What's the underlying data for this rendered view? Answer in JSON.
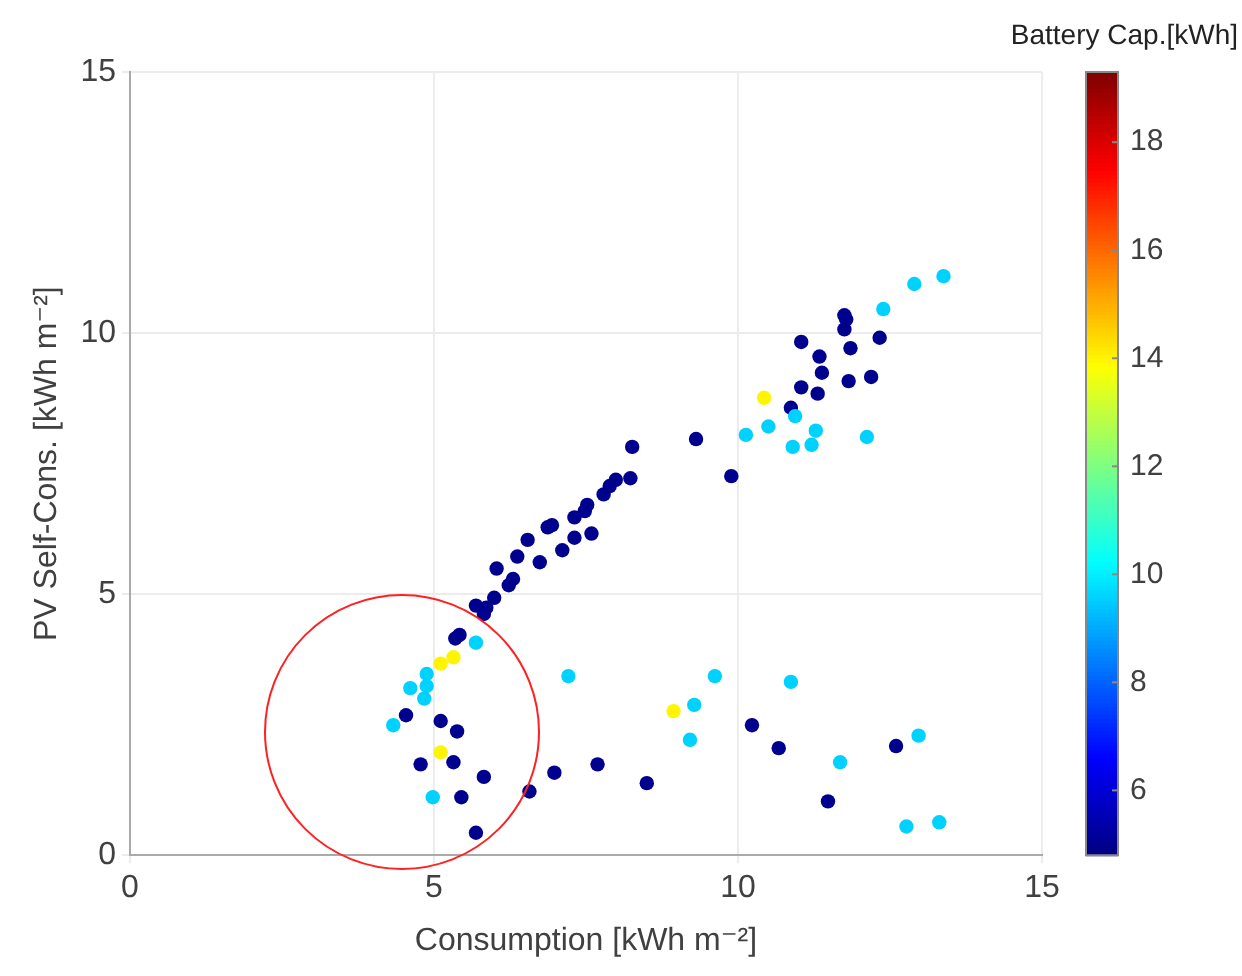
{
  "chart_data": {
    "type": "scatter",
    "xlabel": "Consumption [kWh m⁻²]",
    "ylabel": "PV Self-Cons. [kWh m⁻²]",
    "clabel": "Battery Cap.[kWh]",
    "xlim": [
      0,
      15
    ],
    "xticks": [
      0,
      5,
      10,
      15
    ],
    "ylim": [
      0,
      15
    ],
    "yticks": [
      0,
      5,
      10,
      15
    ],
    "clim": [
      4.8,
      19.3
    ],
    "cticks": [
      6,
      8,
      10,
      12,
      14,
      16,
      18
    ],
    "grid": true,
    "marker": "circle",
    "legend": false,
    "x": [
      5.69,
      5.82,
      5.35,
      5.42,
      5.69,
      5.11,
      5.32,
      7.21,
      4.88,
      4.61,
      4.88,
      4.84,
      4.54,
      4.33,
      5.11,
      5.38,
      5.11,
      5.32,
      4.78,
      5.82,
      4.98,
      5.45,
      5.69,
      6.57,
      6.98,
      7.69,
      8.5,
      8.94,
      9.28,
      9.21,
      9.62,
      10.23,
      10.87,
      10.67,
      11.68,
      11.48,
      12.6,
      12.97,
      12.77,
      13.31,
      5.86,
      5.99,
      6.23,
      6.3,
      6.03,
      6.37,
      6.74,
      6.54,
      6.87,
      6.94,
      7.11,
      7.31,
      7.59,
      7.31,
      7.48,
      7.52,
      7.79,
      7.89,
      7.99,
      8.23,
      8.26,
      9.31,
      9.89,
      10.13,
      10.5,
      10.43,
      10.87,
      10.94,
      10.9,
      11.21,
      11.28,
      11.04,
      11.31,
      11.38,
      11.34,
      11.04,
      11.82,
      12.19,
      12.12,
      11.85,
      11.75,
      11.78,
      11.75,
      12.33,
      12.39,
      12.9,
      13.38
    ],
    "values": [
      4.78,
      4.62,
      4.15,
      4.22,
      4.07,
      3.67,
      3.79,
      3.43,
      3.47,
      3.2,
      3.24,
      3.0,
      2.68,
      2.49,
      2.57,
      2.37,
      1.97,
      1.78,
      1.74,
      1.5,
      1.11,
      1.11,
      0.43,
      1.22,
      1.58,
      1.74,
      1.38,
      2.76,
      2.88,
      2.21,
      3.43,
      2.49,
      3.32,
      2.05,
      1.78,
      1.03,
      2.09,
      2.29,
      0.55,
      0.63,
      4.74,
      4.93,
      5.17,
      5.29,
      5.49,
      5.72,
      5.61,
      6.04,
      6.28,
      6.32,
      5.84,
      6.08,
      6.16,
      6.47,
      6.59,
      6.71,
      6.91,
      7.07,
      7.19,
      7.22,
      7.82,
      7.97,
      7.26,
      8.05,
      8.21,
      8.76,
      8.57,
      8.41,
      7.82,
      7.86,
      8.13,
      8.96,
      8.84,
      9.24,
      9.55,
      9.83,
      9.08,
      9.16,
      8.01,
      9.71,
      10.07,
      10.26,
      10.34,
      9.91,
      10.46,
      10.94,
      11.09
    ],
    "cvalues": [
      5,
      5,
      5,
      5,
      9.6,
      14,
      14,
      9.6,
      9.6,
      9.6,
      9.6,
      9.6,
      5,
      9.6,
      5,
      5,
      14,
      5,
      5,
      5,
      9.6,
      5,
      5,
      5,
      5,
      5,
      5,
      14,
      9.6,
      9.6,
      9.6,
      5,
      9.6,
      5,
      9.6,
      5,
      5,
      9.6,
      9.6,
      9.6,
      5,
      5,
      5,
      5,
      5,
      5,
      5,
      5,
      5,
      5,
      5,
      5,
      5,
      5,
      5,
      5,
      5,
      5,
      5,
      5,
      5,
      5,
      5,
      9.6,
      9.6,
      14,
      5,
      9.6,
      9.6,
      9.6,
      9.6,
      5,
      5,
      5,
      5,
      5,
      5,
      5,
      9.6,
      5,
      5,
      5,
      5,
      5,
      9.6,
      9.6,
      9.6
    ]
  }
}
